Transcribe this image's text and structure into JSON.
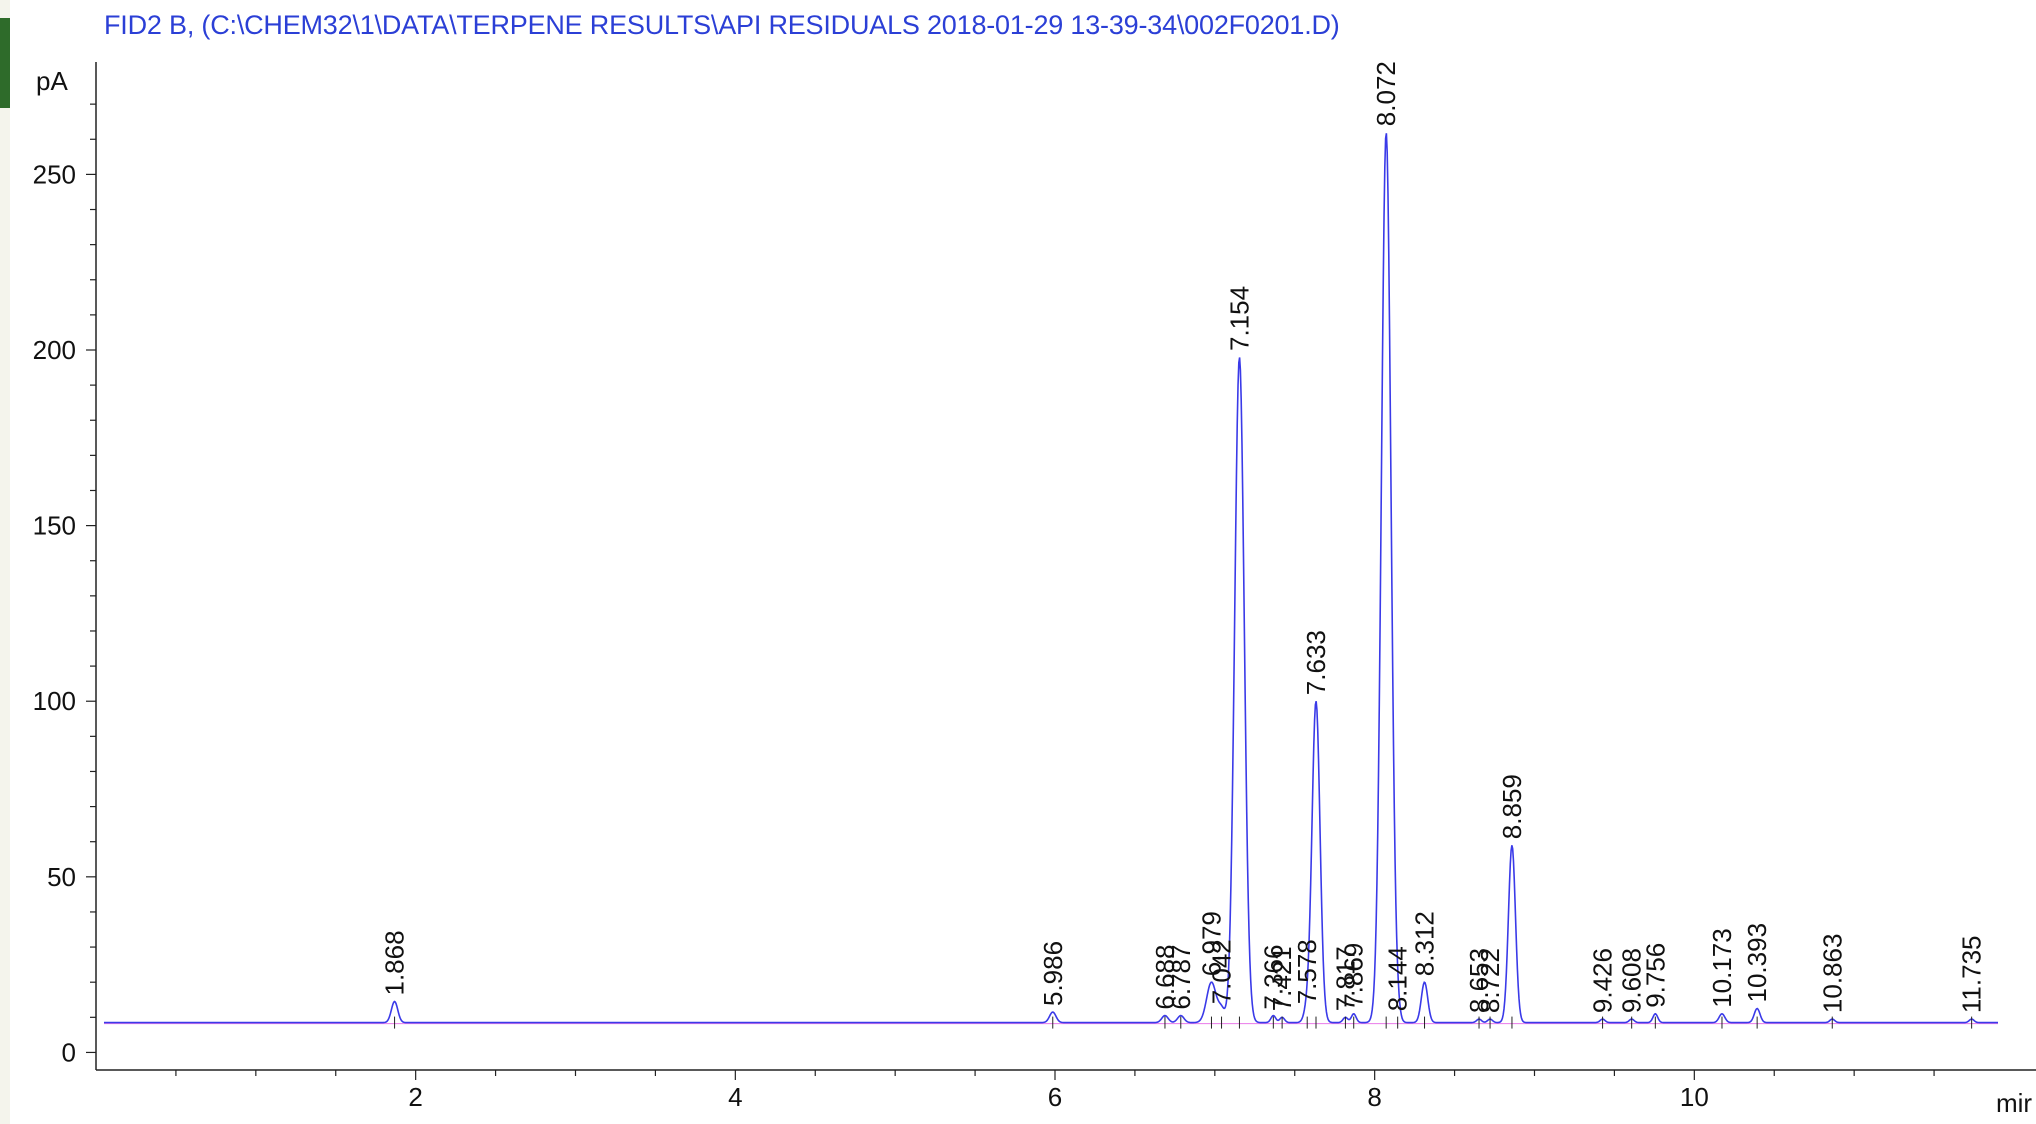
{
  "chart_data": {
    "type": "line",
    "title": "FID2 B,  (C:\\CHEM32\\1\\DATA\\TERPENE RESULTS\\API RESIDUALS 2018-01-29 13-39-34\\002F0201.D)",
    "ylabel": "pA",
    "xlabel": "mir",
    "xlim": [
      0,
      11.95
    ],
    "ylim": [
      -5,
      282
    ],
    "x_ticks": [
      2,
      4,
      6,
      8,
      10
    ],
    "y_ticks": [
      0,
      50,
      100,
      150,
      200,
      250
    ],
    "baseline": 8.5,
    "colors": {
      "trace": "#3a3ae8",
      "baseline": "#e040e0",
      "title": "#2b3fd6"
    },
    "peaks": [
      {
        "rt": 1.868,
        "label": "1.868",
        "height": 14.5,
        "width": 0.02
      },
      {
        "rt": 5.986,
        "label": "5.986",
        "height": 11.5,
        "width": 0.02
      },
      {
        "rt": 6.688,
        "label": "6.688",
        "height": 10.5,
        "width": 0.02
      },
      {
        "rt": 6.787,
        "label": "6.787",
        "height": 10.5,
        "width": 0.02
      },
      {
        "rt": 6.979,
        "label": "6.979",
        "height": 20,
        "width": 0.03
      },
      {
        "rt": 7.042,
        "label": "7.042",
        "height": 12,
        "width": 0.02
      },
      {
        "rt": 7.154,
        "label": "7.154",
        "height": 198,
        "width": 0.03
      },
      {
        "rt": 7.366,
        "label": "7.366",
        "height": 10.5,
        "width": 0.015
      },
      {
        "rt": 7.421,
        "label": "7.421",
        "height": 10,
        "width": 0.015
      },
      {
        "rt": 7.578,
        "label": "7.578",
        "height": 12,
        "width": 0.02
      },
      {
        "rt": 7.633,
        "label": "7.633",
        "height": 100,
        "width": 0.025
      },
      {
        "rt": 7.817,
        "label": "7.817",
        "height": 10,
        "width": 0.015
      },
      {
        "rt": 7.869,
        "label": "7.869",
        "height": 11,
        "width": 0.015
      },
      {
        "rt": 8.072,
        "label": "8.072",
        "height": 262,
        "width": 0.03
      },
      {
        "rt": 8.144,
        "label": "8.144",
        "height": 10,
        "width": 0.015
      },
      {
        "rt": 8.312,
        "label": "8.312",
        "height": 20,
        "width": 0.02
      },
      {
        "rt": 8.653,
        "label": "8.653",
        "height": 9.5,
        "width": 0.015
      },
      {
        "rt": 8.722,
        "label": "8.722",
        "height": 9.5,
        "width": 0.015
      },
      {
        "rt": 8.859,
        "label": "8.859",
        "height": 59,
        "width": 0.022
      },
      {
        "rt": 9.426,
        "label": "9.426",
        "height": 9.5,
        "width": 0.015
      },
      {
        "rt": 9.608,
        "label": "9.608",
        "height": 9.5,
        "width": 0.015
      },
      {
        "rt": 9.756,
        "label": "9.756",
        "height": 11,
        "width": 0.015
      },
      {
        "rt": 10.173,
        "label": "10.173",
        "height": 11,
        "width": 0.018
      },
      {
        "rt": 10.393,
        "label": "10.393",
        "height": 12.5,
        "width": 0.018
      },
      {
        "rt": 10.863,
        "label": "10.863",
        "height": 9.5,
        "width": 0.015
      },
      {
        "rt": 11.735,
        "label": "11.735",
        "height": 9.5,
        "width": 0.015
      }
    ]
  }
}
